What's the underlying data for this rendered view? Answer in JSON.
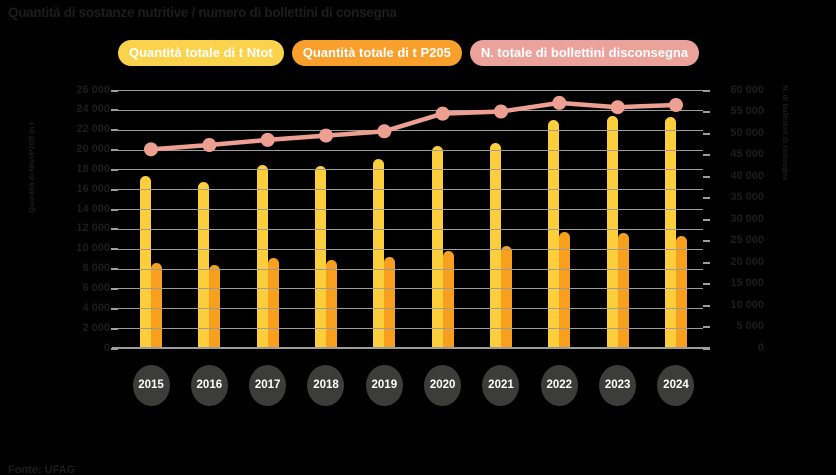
{
  "title": "Quantità di sostanze nutritive / numero di bollettini di consegna",
  "source": "Fonte: UFAG",
  "legend": [
    {
      "label": "Quantità totale di t Ntot",
      "color": "#FBD24B"
    },
    {
      "label": "Quantità totale di t P205",
      "color": "#F89F2C"
    },
    {
      "label": "N. totale di bollettini disconsegna",
      "color": "#EBA29A"
    }
  ],
  "colors": {
    "background": "#000000",
    "grid": "#9D9D9C",
    "axis_text": "#1D1D1B",
    "year_circle": "#3C3C3B",
    "year_text": "#FFFFFF"
  },
  "chart_data": {
    "type": "bar",
    "subtype": "combo bar + line, dual axis",
    "title": "Quantità di sostanze nutritive / numero di bollettini di consegna",
    "categories": [
      "2015",
      "2016",
      "2017",
      "2018",
      "2019",
      "2020",
      "2021",
      "2022",
      "2023",
      "2024"
    ],
    "series": [
      {
        "name": "Quantità totale di t Ntot",
        "kind": "bar",
        "axis": "left",
        "color": "#FCCE3C",
        "values": [
          17300,
          16700,
          18400,
          18300,
          19000,
          20400,
          20700,
          23000,
          23400,
          23300
        ]
      },
      {
        "name": "Quantità totale di t P205",
        "kind": "bar",
        "axis": "left",
        "color": "#F89F1E",
        "values": [
          8600,
          8400,
          9100,
          8900,
          9200,
          9800,
          10300,
          11700,
          11600,
          11300
        ]
      },
      {
        "name": "N. totale di bollettini disconsegna",
        "kind": "line",
        "axis": "right",
        "color": "#EDA092",
        "values": [
          46200,
          47200,
          48400,
          49400,
          50400,
          54500,
          55000,
          57000,
          56000,
          56500
        ]
      }
    ],
    "left_axis": {
      "label": "Quantità di Ntot/P2O5 in t",
      "min": 0,
      "max": 26000,
      "step": 2000
    },
    "right_axis": {
      "label": "N. di bollettini di consegna",
      "min": 0,
      "max": 60000,
      "step": 5000
    },
    "grid": true,
    "gridlines_over_bars": true,
    "legend_position": "top"
  }
}
